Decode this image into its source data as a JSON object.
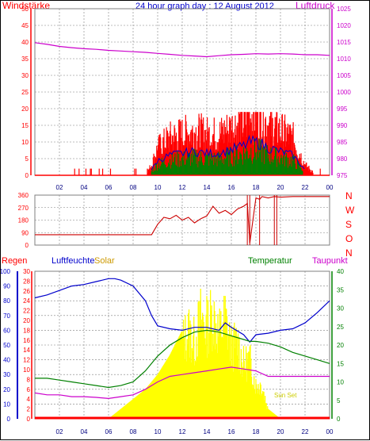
{
  "header": {
    "left_label": "Windstärke",
    "title": "24 hour graph day : 12 August 2012",
    "right_label": "Luftdruck"
  },
  "colors": {
    "wind": "#ff0000",
    "wind2": "#008000",
    "wind3": "#0000cc",
    "pressure": "#cc00cc",
    "direction": "#cc0000",
    "humidity": "#0000cc",
    "solar": "#ffff00",
    "temperature": "#008000",
    "dewpoint": "#cc00cc",
    "rain": "#ff0000",
    "grid": "#7f7f7f"
  },
  "bottom_header": {
    "rain": "Regen",
    "humidity": "Luftfeuchte",
    "solar": "Solar",
    "temperature": "Temperatur",
    "dewpoint": "Taupunkt",
    "annotation": "Sun Set"
  },
  "compass": [
    "N",
    "W",
    "S",
    "O",
    "N"
  ],
  "chart_data": [
    {
      "type": "line",
      "panel": "wind_pressure",
      "x_ticks": [
        "02",
        "04",
        "06",
        "08",
        "10",
        "12",
        "14",
        "16",
        "18",
        "20",
        "22",
        "00"
      ],
      "y_left_ticks": [
        "0",
        "5",
        "10",
        "15",
        "20",
        "25",
        "30",
        "35",
        "40",
        "45",
        "50"
      ],
      "y_right_ticks": [
        "975",
        "980",
        "985",
        "990",
        "995",
        "1000",
        "1005",
        "1010",
        "1015",
        "1020",
        "1025"
      ],
      "ylim_left": [
        0,
        50
      ],
      "ylim_right": [
        975,
        1025
      ],
      "series": [
        {
          "name": "Windstärke",
          "axis": "left",
          "x": [
            0,
            1,
            2,
            3,
            4,
            5,
            6,
            7,
            8,
            9,
            9.5,
            10,
            11,
            12,
            13,
            14,
            15,
            16,
            17,
            17.5,
            18,
            18.5,
            19,
            20,
            21,
            22,
            23,
            24
          ],
          "y": [
            0,
            0,
            0,
            0,
            0,
            0,
            0,
            0,
            0,
            0,
            3,
            8,
            11,
            12,
            13,
            12,
            12,
            14,
            16,
            18,
            18,
            17,
            15,
            13,
            11,
            3,
            0,
            0
          ]
        },
        {
          "name": "Luftdruck",
          "axis": "right",
          "x": [
            0,
            1,
            2,
            3,
            4,
            5,
            6,
            7,
            8,
            9,
            10,
            11,
            12,
            13,
            14,
            15,
            16,
            17,
            18,
            19,
            20,
            21,
            22,
            23,
            24
          ],
          "y": [
            1014.8,
            1014.3,
            1013.7,
            1013.3,
            1013.0,
            1012.8,
            1012.5,
            1012.3,
            1012.1,
            1011.9,
            1011.6,
            1011.3,
            1011.0,
            1010.8,
            1010.6,
            1010.9,
            1011.2,
            1011.3,
            1011.5,
            1011.4,
            1011.5,
            1011.4,
            1011.2,
            1011.2,
            1011.0
          ]
        }
      ]
    },
    {
      "type": "line",
      "panel": "wind_direction",
      "y_ticks": [
        "0",
        "90",
        "180",
        "270",
        "360"
      ],
      "ylim": [
        0,
        360
      ],
      "series": [
        {
          "name": "direction",
          "x": [
            0,
            2,
            4,
            6,
            8,
            9.5,
            10,
            10.5,
            11,
            11.5,
            12,
            12.5,
            13,
            13.5,
            14,
            14.5,
            15,
            15.5,
            16,
            16.5,
            17,
            17.3,
            17.5,
            18,
            18.3,
            18.5,
            19,
            19.5,
            20,
            21,
            22,
            23,
            24
          ],
          "y": [
            75,
            75,
            75,
            75,
            75,
            75,
            150,
            200,
            190,
            215,
            180,
            200,
            160,
            190,
            210,
            280,
            230,
            250,
            220,
            260,
            280,
            300,
            15,
            340,
            330,
            350,
            340,
            350,
            345,
            350,
            350,
            350,
            350
          ]
        }
      ]
    },
    {
      "type": "line",
      "panel": "climate",
      "y_humidity_ticks": [
        "0",
        "10",
        "20",
        "30",
        "40",
        "50",
        "60",
        "70",
        "80",
        "90",
        "100"
      ],
      "y_rain_ticks": [
        "0",
        "2",
        "4",
        "6",
        "8",
        "10",
        "12",
        "14",
        "16",
        "18",
        "20",
        "22",
        "24",
        "26",
        "28",
        "30"
      ],
      "y_temperature_ticks": [
        "0",
        "5",
        "10",
        "15",
        "20",
        "25",
        "30",
        "35",
        "40"
      ],
      "ylim_humidity": [
        0,
        100
      ],
      "ylim_rain": [
        0,
        30
      ],
      "ylim_temperature": [
        0,
        40
      ],
      "series": [
        {
          "name": "Luftfeuchte",
          "x": [
            0,
            1,
            2,
            3,
            4,
            5,
            6,
            6.5,
            7,
            8,
            9,
            9.5,
            10,
            11,
            12,
            13,
            14,
            15,
            15.5,
            16,
            17,
            17.5,
            18,
            19,
            20,
            21,
            22,
            23,
            24
          ],
          "y": [
            82,
            84,
            87,
            90,
            91,
            93,
            95,
            95,
            94,
            90,
            80,
            70,
            63,
            61,
            60,
            62,
            62,
            60,
            65,
            62,
            57,
            52,
            57,
            58,
            60,
            61,
            65,
            72,
            80
          ]
        },
        {
          "name": "Solar",
          "x": [
            0,
            6,
            7,
            8,
            9,
            10,
            11,
            12,
            12.5,
            13,
            13.5,
            14,
            14.5,
            15,
            15.5,
            16,
            16.5,
            17,
            17.5,
            18,
            18.5,
            19,
            19.5,
            20,
            24
          ],
          "y": [
            0,
            0,
            2,
            4,
            6,
            9,
            13,
            18,
            21,
            18,
            24,
            22,
            25,
            20,
            24,
            17,
            18,
            13,
            14,
            8,
            8,
            2,
            1,
            0,
            0
          ]
        },
        {
          "name": "Temperatur",
          "x": [
            0,
            1,
            2,
            3,
            4,
            5,
            6,
            7,
            8,
            9,
            10,
            11,
            12,
            13,
            14,
            15,
            16,
            17,
            17.5,
            18,
            19,
            20,
            21,
            22,
            23,
            24
          ],
          "y": [
            11,
            11,
            10.5,
            10,
            9.5,
            9,
            8.5,
            9,
            10,
            13,
            17,
            20,
            22,
            23.5,
            24,
            23.5,
            22.5,
            21.5,
            21,
            21,
            20.5,
            19.5,
            18,
            17,
            16,
            15
          ]
        },
        {
          "name": "Taupunkt",
          "x": [
            0,
            1,
            2,
            3,
            4,
            5,
            6,
            7,
            8,
            9,
            10,
            11,
            12,
            13,
            14,
            15,
            16,
            17,
            18,
            19,
            20,
            21,
            22,
            23,
            24
          ],
          "y": [
            7,
            6.5,
            6.5,
            6,
            6,
            5.8,
            5.5,
            6,
            6.5,
            8,
            10,
            11.5,
            12,
            12.5,
            13,
            13.5,
            14,
            13.5,
            13,
            11.5,
            11.5,
            11.5,
            11.5,
            11.5,
            11.5
          ]
        },
        {
          "name": "Regen",
          "x": [
            0,
            24
          ],
          "y": [
            0,
            0
          ]
        }
      ]
    }
  ]
}
